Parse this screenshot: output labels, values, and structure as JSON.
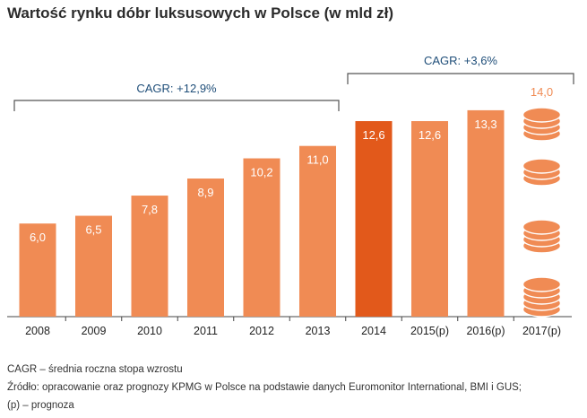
{
  "chart_data": {
    "type": "bar",
    "title": "Wartość rynku dóbr luksusowych w Polsce (w mld zł)",
    "xlabel": "",
    "ylabel": "",
    "ylim": [
      0,
      14
    ],
    "categories": [
      "2008",
      "2009",
      "2010",
      "2011",
      "2012",
      "2013",
      "2014",
      "2015(p)",
      "2016(p)",
      "2017(p)"
    ],
    "values": [
      6.0,
      6.5,
      7.8,
      8.9,
      10.2,
      11.0,
      12.6,
      12.6,
      13.3,
      14.0
    ],
    "value_labels": [
      "6,0",
      "6,5",
      "7,8",
      "8,9",
      "10,2",
      "11,0",
      "12,6",
      "12,6",
      "13,3",
      "14,0"
    ],
    "highlight_category": "2014",
    "annotations": [
      {
        "label": "CAGR: +12,9%",
        "range": [
          "2008",
          "2013"
        ]
      },
      {
        "label": "CAGR: +3,6%",
        "range": [
          "2014",
          "2017(p)"
        ]
      }
    ],
    "colors": {
      "bar": "#f08b54",
      "highlight": "#e2591b",
      "coin": "#f08b54",
      "coin_edge": "#ffffff",
      "bracket": "#555555",
      "annotation_text": "#1f4e79",
      "label_inside": "#ffffff",
      "label_outside": "#f08b54"
    }
  },
  "footnotes": {
    "cagr": "CAGR – średnia roczna stopa wzrostu",
    "source": "Źródło: opracowanie oraz prognozy KPMG w Polsce na podstawie danych Euromonitor International, BMI i GUS;",
    "projection": "(p) – prognoza"
  }
}
